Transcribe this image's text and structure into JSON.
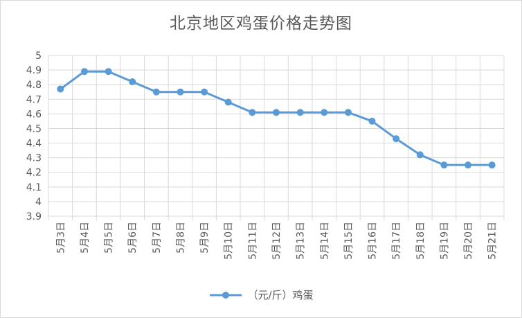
{
  "chart_data": {
    "type": "line",
    "title": "北京地区鸡蛋价格走势图",
    "categories": [
      "5月3日",
      "5月4日",
      "5月5日",
      "5月6日",
      "5月7日",
      "5月8日",
      "5月9日",
      "5月10日",
      "5月11日",
      "5月12日",
      "5月13日",
      "5月14日",
      "5月15日",
      "5月16日",
      "5月17日",
      "5月18日",
      "5月19日",
      "5月20日",
      "5月21日"
    ],
    "series": [
      {
        "name": "（元/斤）鸡蛋",
        "values": [
          4.77,
          4.89,
          4.89,
          4.82,
          4.75,
          4.75,
          4.75,
          4.68,
          4.61,
          4.61,
          4.61,
          4.61,
          4.61,
          4.55,
          4.43,
          4.32,
          4.25,
          4.25,
          4.25
        ]
      }
    ],
    "xlabel": "",
    "ylabel": "",
    "ylim": [
      3.9,
      5
    ],
    "yticks": [
      "3.9",
      "4",
      "4.1",
      "4.2",
      "4.3",
      "4.4",
      "4.5",
      "4.6",
      "4.7",
      "4.8",
      "4.9",
      "5"
    ],
    "grid": true,
    "legend_position": "bottom",
    "colors": {
      "series": "#5b9bd5",
      "grid": "#d9d9d9",
      "text": "#595959"
    }
  }
}
